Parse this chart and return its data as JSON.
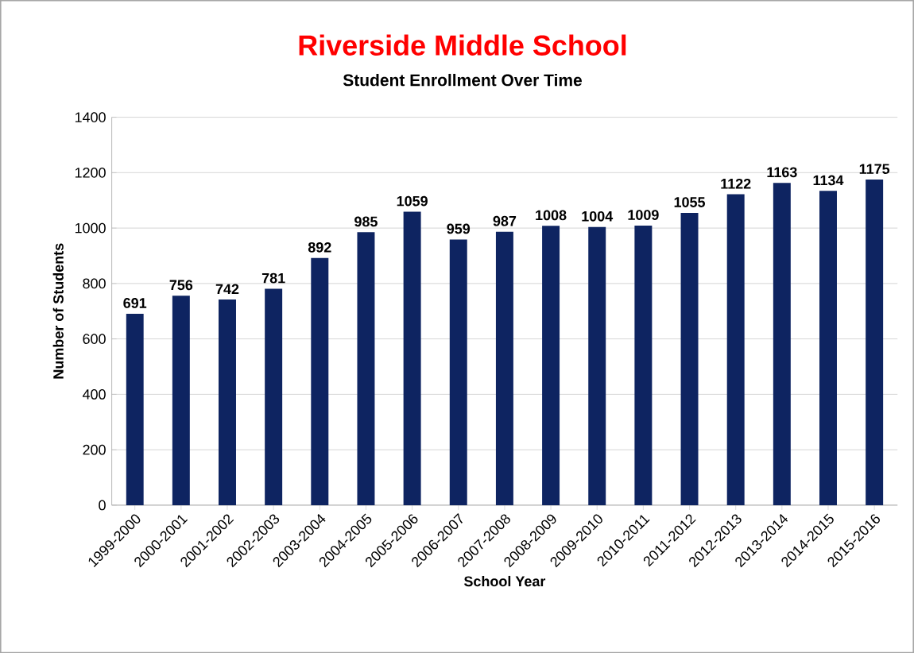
{
  "chart_data": {
    "type": "bar",
    "title": "Riverside Middle School",
    "subtitle": "Student Enrollment Over Time",
    "xlabel": "School Year",
    "ylabel": "Number of Students",
    "categories": [
      "1999-2000",
      "2000-2001",
      "2001-2002",
      "2002-2003",
      "2003-2004",
      "2004-2005",
      "2005-2006",
      "2006-2007",
      "2007-2008",
      "2008-2009",
      "2009-2010",
      "2010-2011",
      "2011-2012",
      "2012-2013",
      "2013-2014",
      "2014-2015",
      "2015-2016"
    ],
    "values": [
      691,
      756,
      742,
      781,
      892,
      985,
      1059,
      959,
      987,
      1008,
      1004,
      1009,
      1055,
      1122,
      1163,
      1134,
      1175
    ],
    "color": "#0e2461",
    "ylim": [
      0,
      1400
    ],
    "yticks": [
      0,
      200,
      400,
      600,
      800,
      1000,
      1200,
      1400
    ],
    "grid": "y",
    "data_labels": true
  }
}
